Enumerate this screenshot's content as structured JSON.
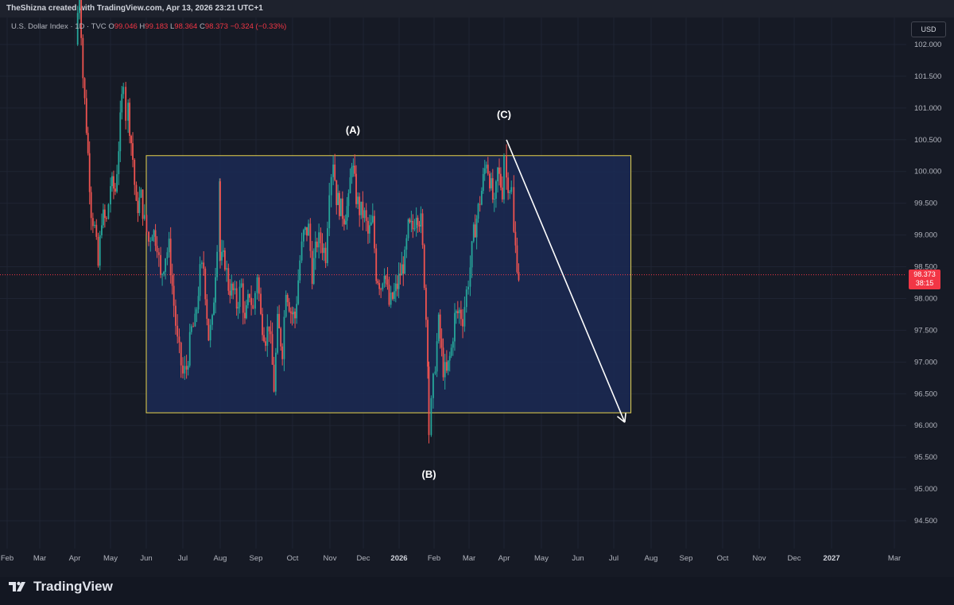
{
  "header": {
    "credit": "TheShizna created with TradingView.com, Apr 13, 2026 23:21 UTC+1"
  },
  "legend": {
    "symbol": "U.S. Dollar Index · 1D · TVC",
    "o_label": "O",
    "o_value": "99.046",
    "h_label": "H",
    "h_value": "99.183",
    "l_label": "L",
    "l_value": "98.364",
    "c_label": "C",
    "c_value": "98.373",
    "change": "−0.324 (−0.33%)"
  },
  "currency_button": "USD",
  "price_badge": {
    "price": "98.373",
    "countdown": "38:15"
  },
  "footer": {
    "logo_text": "TradingView"
  },
  "colors": {
    "background": "#161a25",
    "up": "#26a69a",
    "down": "#ef5350",
    "box_fill": "#1b2a55",
    "box_border": "#e8d44d",
    "arrow": "#ffffff",
    "price_line": "#f23645"
  },
  "chart_data": {
    "type": "candlestick",
    "title": "U.S. Dollar Index",
    "y_axis_ticks": [
      "94.500",
      "95.000",
      "95.500",
      "96.000",
      "96.500",
      "97.000",
      "97.500",
      "98.000",
      "98.500",
      "99.000",
      "99.500",
      "100.000",
      "100.500",
      "101.000",
      "101.500",
      "102.000"
    ],
    "x_axis_ticks": [
      "Feb",
      "Mar",
      "Apr",
      "May",
      "Jun",
      "Jul",
      "Aug",
      "Sep",
      "Oct",
      "Nov",
      "Dec",
      "2026",
      "Feb",
      "Mar",
      "Apr",
      "May",
      "Jun",
      "Jul",
      "Aug",
      "Sep",
      "Oct",
      "Nov",
      "Dec",
      "2027",
      "Mar"
    ],
    "ylim": [
      94.0,
      102.3
    ],
    "grid": true,
    "last_price": 98.373,
    "wave_labels": [
      {
        "text": "(A)",
        "date": "2025-11-22",
        "price": 100.4
      },
      {
        "text": "(B)",
        "date": "2026-01-27",
        "price": 95.55
      },
      {
        "text": "(C)",
        "date": "2026-04-01",
        "price": 100.64
      }
    ],
    "range_box": {
      "start": "2025-06-01",
      "end": "2026-07-15",
      "top": 100.25,
      "bottom": 96.2
    },
    "projection_arrow": {
      "from_date": "2026-04-03",
      "from_price": 100.5,
      "to_date": "2026-07-10",
      "to_price": 96.05
    },
    "price_path": [
      [
        "2025-04-02",
        102.0
      ],
      [
        "2025-04-05",
        103.0
      ],
      [
        "2025-04-08",
        101.5
      ],
      [
        "2025-04-11",
        100.7
      ],
      [
        "2025-04-15",
        99.4
      ],
      [
        "2025-04-18",
        99.1
      ],
      [
        "2025-04-21",
        98.5
      ],
      [
        "2025-04-24",
        99.3
      ],
      [
        "2025-04-28",
        99.2
      ],
      [
        "2025-05-01",
        99.8
      ],
      [
        "2025-05-05",
        99.7
      ],
      [
        "2025-05-08",
        100.4
      ],
      [
        "2025-05-12",
        101.5
      ],
      [
        "2025-05-14",
        100.9
      ],
      [
        "2025-05-16",
        101.0
      ],
      [
        "2025-05-20",
        100.2
      ],
      [
        "2025-05-23",
        99.4
      ],
      [
        "2025-05-27",
        99.6
      ],
      [
        "2025-05-30",
        99.2
      ],
      [
        "2025-06-03",
        98.9
      ],
      [
        "2025-06-06",
        99.1
      ],
      [
        "2025-06-10",
        98.9
      ],
      [
        "2025-06-13",
        98.3
      ],
      [
        "2025-06-17",
        98.7
      ],
      [
        "2025-06-20",
        98.8
      ],
      [
        "2025-06-24",
        97.9
      ],
      [
        "2025-06-27",
        97.3
      ],
      [
        "2025-07-01",
        96.8
      ],
      [
        "2025-07-04",
        96.9
      ],
      [
        "2025-07-08",
        97.5
      ],
      [
        "2025-07-11",
        97.6
      ],
      [
        "2025-07-15",
        98.4
      ],
      [
        "2025-07-18",
        98.5
      ],
      [
        "2025-07-22",
        97.4
      ],
      [
        "2025-07-25",
        97.6
      ],
      [
        "2025-07-29",
        98.9
      ],
      [
        "2025-07-31",
        99.9
      ],
      [
        "2025-08-01",
        98.6
      ],
      [
        "2025-08-05",
        98.6
      ],
      [
        "2025-08-08",
        98.2
      ],
      [
        "2025-08-12",
        98.1
      ],
      [
        "2025-08-15",
        97.9
      ],
      [
        "2025-08-19",
        98.2
      ],
      [
        "2025-08-22",
        97.6
      ],
      [
        "2025-08-26",
        98.1
      ],
      [
        "2025-08-29",
        97.8
      ],
      [
        "2025-09-02",
        98.4
      ],
      [
        "2025-09-05",
        97.7
      ],
      [
        "2025-09-09",
        97.4
      ],
      [
        "2025-09-12",
        97.6
      ],
      [
        "2025-09-16",
        96.6
      ],
      [
        "2025-09-19",
        97.6
      ],
      [
        "2025-09-23",
        97.2
      ],
      [
        "2025-09-26",
        98.2
      ],
      [
        "2025-09-30",
        97.8
      ],
      [
        "2025-10-03",
        97.7
      ],
      [
        "2025-10-07",
        98.6
      ],
      [
        "2025-10-10",
        99.0
      ],
      [
        "2025-10-14",
        99.1
      ],
      [
        "2025-10-17",
        98.4
      ],
      [
        "2025-10-21",
        98.9
      ],
      [
        "2025-10-24",
        98.9
      ],
      [
        "2025-10-28",
        98.7
      ],
      [
        "2025-10-31",
        99.8
      ],
      [
        "2025-11-04",
        100.2
      ],
      [
        "2025-11-07",
        99.6
      ],
      [
        "2025-11-11",
        99.4
      ],
      [
        "2025-11-14",
        99.3
      ],
      [
        "2025-11-18",
        99.5
      ],
      [
        "2025-11-21",
        100.2
      ],
      [
        "2025-11-25",
        99.6
      ],
      [
        "2025-11-28",
        99.4
      ],
      [
        "2025-12-02",
        99.3
      ],
      [
        "2025-12-05",
        99.0
      ],
      [
        "2025-12-09",
        99.2
      ],
      [
        "2025-12-12",
        98.4
      ],
      [
        "2025-12-16",
        98.2
      ],
      [
        "2025-12-19",
        98.5
      ],
      [
        "2025-12-23",
        97.9
      ],
      [
        "2025-12-26",
        98.0
      ],
      [
        "2025-12-30",
        98.2
      ],
      [
        "2026-01-02",
        98.4
      ],
      [
        "2026-01-06",
        98.6
      ],
      [
        "2026-01-09",
        99.1
      ],
      [
        "2026-01-13",
        99.1
      ],
      [
        "2026-01-16",
        99.4
      ],
      [
        "2026-01-20",
        99.2
      ],
      [
        "2026-01-23",
        98.3
      ],
      [
        "2026-01-26",
        97.1
      ],
      [
        "2026-01-27",
        95.9
      ],
      [
        "2026-01-29",
        96.3
      ],
      [
        "2026-02-02",
        97.0
      ],
      [
        "2026-02-05",
        97.6
      ],
      [
        "2026-02-09",
        96.9
      ],
      [
        "2026-02-12",
        96.8
      ],
      [
        "2026-02-16",
        97.2
      ],
      [
        "2026-02-19",
        97.7
      ],
      [
        "2026-02-23",
        97.8
      ],
      [
        "2026-02-26",
        97.7
      ],
      [
        "2026-03-02",
        98.5
      ],
      [
        "2026-03-05",
        99.0
      ],
      [
        "2026-03-09",
        99.4
      ],
      [
        "2026-03-12",
        99.7
      ],
      [
        "2026-03-16",
        100.2
      ],
      [
        "2026-03-19",
        99.9
      ],
      [
        "2026-03-23",
        99.4
      ],
      [
        "2026-03-26",
        100.0
      ],
      [
        "2026-03-30",
        99.7
      ],
      [
        "2026-04-01",
        100.3
      ],
      [
        "2026-04-03",
        99.9
      ],
      [
        "2026-04-07",
        99.7
      ],
      [
        "2026-04-09",
        99.0
      ],
      [
        "2026-04-13",
        98.373
      ]
    ]
  }
}
